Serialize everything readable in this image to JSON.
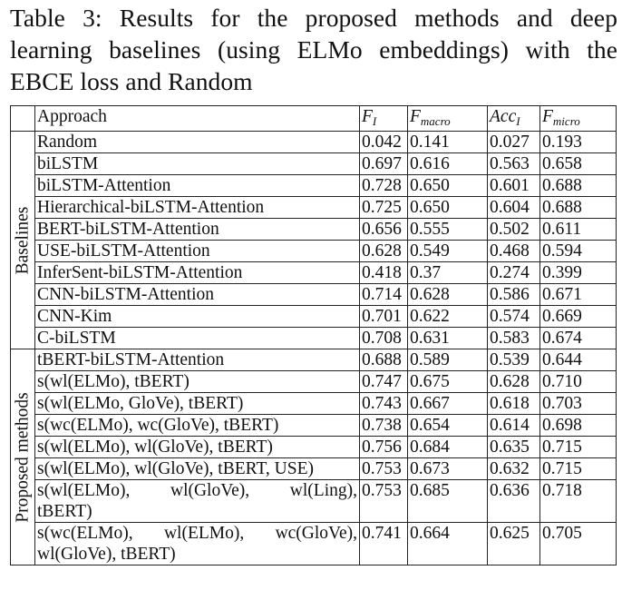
{
  "caption": {
    "lines": [
      "Table 3:  Results for the proposed methods and deep",
      "learning baselines (using ELMo embeddings) with the",
      "EBCE loss and Random"
    ]
  },
  "table": {
    "header": {
      "approach": "Approach",
      "metrics": [
        {
          "main": "F",
          "sub": "I"
        },
        {
          "main": "F",
          "sub": "macro"
        },
        {
          "main": "Acc",
          "sub": "I"
        },
        {
          "main": "F",
          "sub": "micro"
        }
      ]
    },
    "groups": [
      {
        "label": "Baselines",
        "rows": [
          {
            "approach": [
              "Random"
            ],
            "values": [
              "0.042",
              "0.141",
              "0.027",
              "0.193"
            ],
            "bold": [
              false,
              false,
              false,
              false
            ]
          },
          {
            "approach": [
              "biLSTM"
            ],
            "values": [
              "0.697",
              "0.616",
              "0.563",
              "0.658"
            ],
            "bold": [
              false,
              false,
              false,
              false
            ]
          },
          {
            "approach": [
              "biLSTM-Attention"
            ],
            "values": [
              "0.728",
              "0.650",
              "0.601",
              "0.688"
            ],
            "bold": [
              false,
              false,
              false,
              false
            ]
          },
          {
            "approach": [
              "Hierarchical-biLSTM-Attention"
            ],
            "values": [
              "0.725",
              "0.650",
              "0.604",
              "0.688"
            ],
            "bold": [
              false,
              false,
              false,
              false
            ]
          },
          {
            "approach": [
              "BERT-biLSTM-Attention"
            ],
            "values": [
              "0.656",
              "0.555",
              "0.502",
              "0.611"
            ],
            "bold": [
              false,
              false,
              false,
              false
            ]
          },
          {
            "approach": [
              "USE-biLSTM-Attention"
            ],
            "values": [
              "0.628",
              "0.549",
              "0.468",
              "0.594"
            ],
            "bold": [
              false,
              false,
              false,
              false
            ]
          },
          {
            "approach": [
              "InferSent-biLSTM-Attention"
            ],
            "values": [
              "0.418",
              "0.37",
              "0.274",
              "0.399"
            ],
            "bold": [
              false,
              false,
              false,
              false
            ]
          },
          {
            "approach": [
              "CNN-biLSTM-Attention"
            ],
            "values": [
              "0.714",
              "0.628",
              "0.586",
              "0.671"
            ],
            "bold": [
              false,
              false,
              false,
              false
            ]
          },
          {
            "approach": [
              "CNN-Kim"
            ],
            "values": [
              "0.701",
              "0.622",
              "0.574",
              "0.669"
            ],
            "bold": [
              false,
              false,
              false,
              false
            ]
          },
          {
            "approach": [
              "C-biLSTM"
            ],
            "values": [
              "0.708",
              "0.631",
              "0.583",
              "0.674"
            ],
            "bold": [
              false,
              false,
              false,
              false
            ]
          }
        ]
      },
      {
        "label": "Proposed methods",
        "rows": [
          {
            "approach": [
              "tBERT-biLSTM-Attention"
            ],
            "values": [
              "0.688",
              "0.589",
              "0.539",
              "0.644"
            ],
            "bold": [
              false,
              false,
              false,
              false
            ]
          },
          {
            "approach": [
              "s(wl(ELMo), tBERT)"
            ],
            "values": [
              "0.747",
              "0.675",
              "0.628",
              "0.710"
            ],
            "bold": [
              false,
              false,
              false,
              false
            ]
          },
          {
            "approach": [
              "s(wl(ELMo, GloVe), tBERT)"
            ],
            "values": [
              "0.743",
              "0.667",
              "0.618",
              "0.703"
            ],
            "bold": [
              false,
              false,
              false,
              false
            ]
          },
          {
            "approach": [
              "s(wc(ELMo), wc(GloVe), tBERT)"
            ],
            "values": [
              "0.738",
              "0.654",
              "0.614",
              "0.698"
            ],
            "bold": [
              false,
              false,
              false,
              false
            ]
          },
          {
            "approach": [
              "s(wl(ELMo), wl(GloVe), tBERT)"
            ],
            "values": [
              "0.756",
              "0.684",
              "0.635",
              "0.715"
            ],
            "bold": [
              true,
              true,
              true,
              true
            ]
          },
          {
            "approach": [
              "s(wl(ELMo), wl(GloVe), tBERT, USE)"
            ],
            "values": [
              "0.753",
              "0.673",
              "0.632",
              "0.715"
            ],
            "bold": [
              false,
              false,
              false,
              false
            ]
          },
          {
            "approach": [
              "s(wl(ELMo),    wl(GloVe),    wl(Ling),",
              "tBERT)"
            ],
            "values": [
              "0.753",
              "0.685",
              "0.636",
              "0.718"
            ],
            "bold": [
              true,
              true,
              true,
              true
            ]
          },
          {
            "approach": [
              "s(wc(ELMo),    wl(ELMo),    wc(GloVe),",
              "wl(GloVe), tBERT)"
            ],
            "values": [
              "0.741",
              "0.664",
              "0.625",
              "0.705"
            ],
            "bold": [
              false,
              false,
              false,
              false
            ]
          }
        ]
      }
    ]
  }
}
